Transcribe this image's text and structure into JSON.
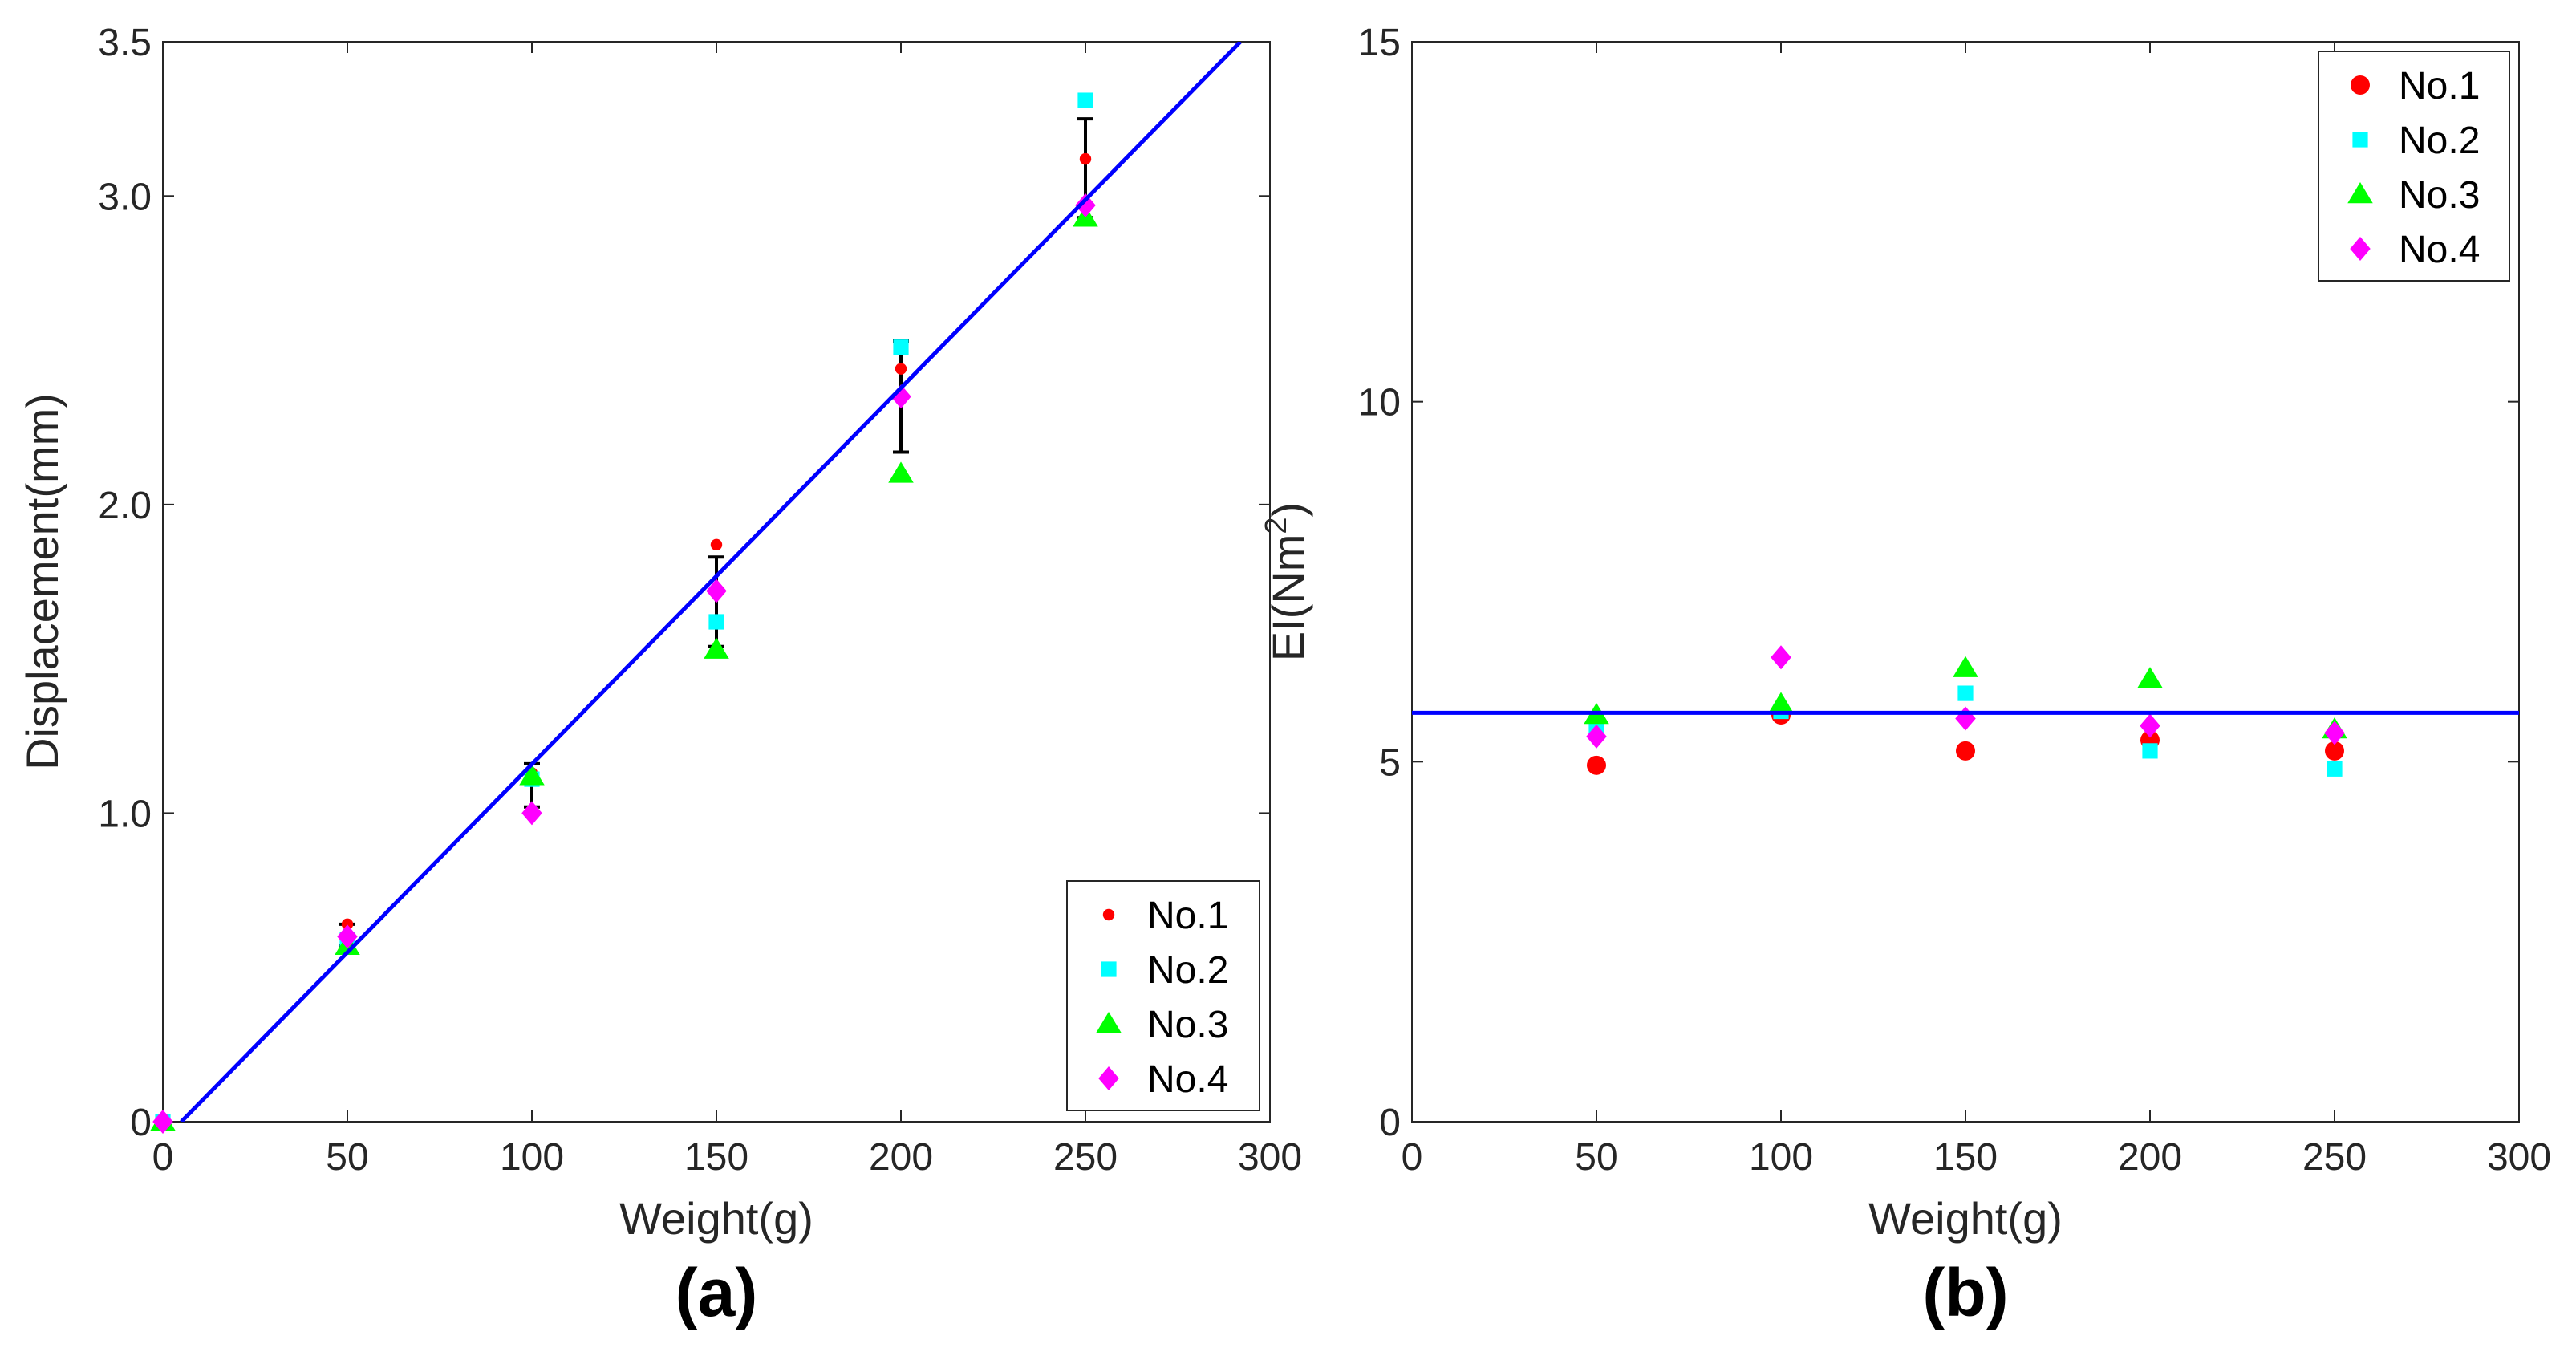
{
  "chart_data": [
    {
      "id": "a",
      "panel_label": "(a)",
      "type": "scatter",
      "xlabel": "Weight(g)",
      "ylabel": "Displacement(mm)",
      "xlim": [
        0,
        300
      ],
      "ylim": [
        0,
        3.5
      ],
      "xticks": [
        0,
        50,
        100,
        150,
        200,
        250,
        300
      ],
      "xtick_labels": [
        "0",
        "50",
        "100",
        "150",
        "200",
        "250",
        "300"
      ],
      "yticks": [
        0,
        1.0,
        2.0,
        3.0,
        3.5
      ],
      "ytick_labels": [
        "0",
        "1.0",
        "2.0",
        "3.0",
        "3.5"
      ],
      "legend_position": "bottom-right",
      "series": [
        {
          "name": "No.1",
          "marker": "circle-small",
          "color": "#ff0000",
          "x": [
            0,
            50,
            100,
            150,
            200,
            250
          ],
          "y": [
            0,
            0.64,
            1.13,
            1.87,
            2.44,
            3.12
          ]
        },
        {
          "name": "No.2",
          "marker": "square",
          "color": "#00ffff",
          "x": [
            0,
            50,
            100,
            150,
            200,
            250
          ],
          "y": [
            0,
            0.59,
            1.11,
            1.62,
            2.51,
            3.31
          ]
        },
        {
          "name": "No.3",
          "marker": "triangle",
          "color": "#00ff00",
          "x": [
            0,
            50,
            100,
            150,
            200,
            250
          ],
          "y": [
            0,
            0.57,
            1.12,
            1.53,
            2.1,
            2.93
          ]
        },
        {
          "name": "No.4",
          "marker": "diamond",
          "color": "#ff00ff",
          "x": [
            0,
            50,
            100,
            150,
            200,
            250
          ],
          "y": [
            0,
            0.6,
            1.0,
            1.72,
            2.35,
            2.97
          ]
        }
      ],
      "error_bars": {
        "color": "#000000",
        "x": [
          50,
          100,
          150,
          200,
          250
        ],
        "mean": [
          0.6,
          1.09,
          1.69,
          2.35,
          3.08
        ],
        "low": [
          0.57,
          1.02,
          1.54,
          2.17,
          2.93
        ],
        "high": [
          0.64,
          1.16,
          1.83,
          2.53,
          3.25
        ]
      },
      "fit_line": {
        "color": "#0000ff",
        "x": [
          5,
          292
        ],
        "y": [
          0,
          3.5
        ]
      }
    },
    {
      "id": "b",
      "panel_label": "(b)",
      "type": "scatter",
      "xlabel": "Weight(g)",
      "ylabel": "EI(Nm",
      "ylabel_superscript": "2",
      "ylabel_suffix": ")",
      "xlim": [
        0,
        300
      ],
      "ylim": [
        0,
        15
      ],
      "xticks": [
        0,
        50,
        100,
        150,
        200,
        250,
        300
      ],
      "xtick_labels": [
        "0",
        "50",
        "100",
        "150",
        "200",
        "250",
        "300"
      ],
      "yticks": [
        0,
        5,
        10,
        15
      ],
      "ytick_labels": [
        "0",
        "5",
        "10",
        "15"
      ],
      "legend_position": "top-right",
      "series": [
        {
          "name": "No.1",
          "marker": "circle",
          "color": "#ff0000",
          "x": [
            50,
            100,
            150,
            200,
            250
          ],
          "y": [
            4.95,
            5.65,
            5.15,
            5.3,
            5.15
          ]
        },
        {
          "name": "No.2",
          "marker": "square",
          "color": "#00ffff",
          "x": [
            50,
            100,
            150,
            200,
            250
          ],
          "y": [
            5.45,
            5.7,
            5.95,
            5.15,
            4.9
          ]
        },
        {
          "name": "No.3",
          "marker": "triangle",
          "color": "#00ff00",
          "x": [
            50,
            100,
            150,
            200,
            250
          ],
          "y": [
            5.65,
            5.8,
            6.3,
            6.15,
            5.45
          ]
        },
        {
          "name": "No.4",
          "marker": "diamond",
          "color": "#ff00ff",
          "x": [
            50,
            100,
            150,
            200,
            250
          ],
          "y": [
            5.35,
            6.45,
            5.6,
            5.5,
            5.4
          ]
        }
      ],
      "fit_line": {
        "color": "#0000ff",
        "x": [
          0,
          300
        ],
        "y": [
          5.68,
          5.68
        ]
      }
    }
  ]
}
